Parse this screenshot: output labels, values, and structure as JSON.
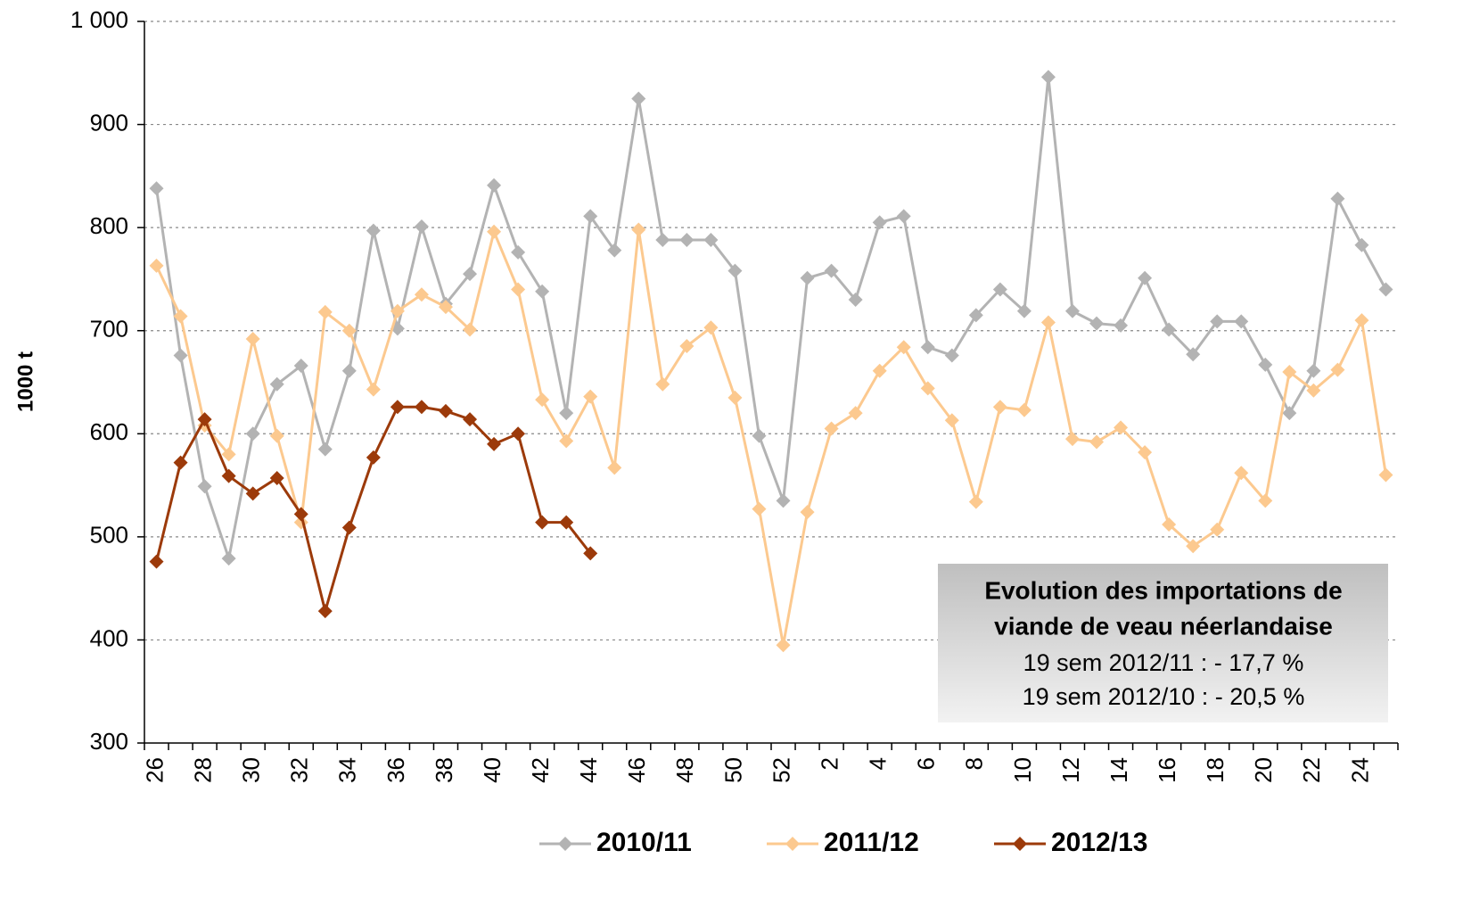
{
  "chart_data": {
    "type": "line",
    "y_label": "1000 t",
    "annotation": {
      "title_lines": [
        "Evolution des importations de",
        "viande de veau néerlandaise"
      ],
      "lines": [
        "19 sem 2012/11 : - 17,7 %",
        "19 sem 2012/10 : - 20,5 %"
      ]
    },
    "categories": [
      "26",
      null,
      "28",
      null,
      "30",
      null,
      "32",
      null,
      "34",
      null,
      "36",
      null,
      "38",
      null,
      "40",
      null,
      "42",
      null,
      "44",
      null,
      "46",
      null,
      "48",
      null,
      "50",
      null,
      "52",
      null,
      "2",
      null,
      "4",
      null,
      "6",
      null,
      "8",
      null,
      "10",
      null,
      "12",
      null,
      "14",
      null,
      "16",
      null,
      "18",
      null,
      "20",
      null,
      "22",
      null,
      "24",
      null
    ],
    "series": [
      {
        "name": "2010/11",
        "color": "#b3b3b3",
        "values": [
          838,
          676,
          549,
          479,
          600,
          648,
          666,
          585,
          661,
          797,
          702,
          801,
          726,
          755,
          841,
          776,
          738,
          620,
          811,
          778,
          925,
          788,
          788,
          788,
          758,
          598,
          535,
          751,
          758,
          730,
          805,
          811,
          684,
          676,
          715,
          740,
          719,
          946,
          719,
          707,
          705,
          751,
          701,
          677,
          709,
          709,
          667,
          620,
          661,
          828,
          783,
          740
        ]
      },
      {
        "name": "2011/12",
        "color": "#fcc98f",
        "values": [
          763,
          714,
          608,
          580,
          692,
          598,
          514,
          718,
          700,
          643,
          719,
          735,
          723,
          701,
          796,
          740,
          633,
          593,
          636,
          567,
          798,
          648,
          685,
          703,
          635,
          527,
          395,
          524,
          605,
          620,
          661,
          684,
          644,
          613,
          534,
          626,
          623,
          708,
          595,
          592,
          606,
          582,
          512,
          491,
          507,
          562,
          535,
          660,
          642,
          662,
          710,
          560
        ]
      },
      {
        "name": "2012/13",
        "color": "#9c3a0a",
        "values": [
          476,
          572,
          614,
          559,
          542,
          557,
          522,
          428,
          509,
          577,
          626,
          626,
          622,
          614,
          590,
          600,
          514,
          514,
          484,
          null,
          null,
          null,
          null,
          null,
          null,
          null,
          null,
          null,
          null,
          null,
          null,
          null,
          null,
          null,
          null,
          null,
          null,
          null,
          null,
          null,
          null,
          null,
          null,
          null,
          null,
          null,
          null,
          null,
          null,
          null,
          null,
          null
        ]
      }
    ],
    "ylim": [
      300,
      1000
    ],
    "yticks": [
      300,
      400,
      500,
      600,
      700,
      800,
      900,
      {
        "value": 1000,
        "label": "1 000"
      }
    ],
    "grid": true,
    "legend": "bottom"
  }
}
